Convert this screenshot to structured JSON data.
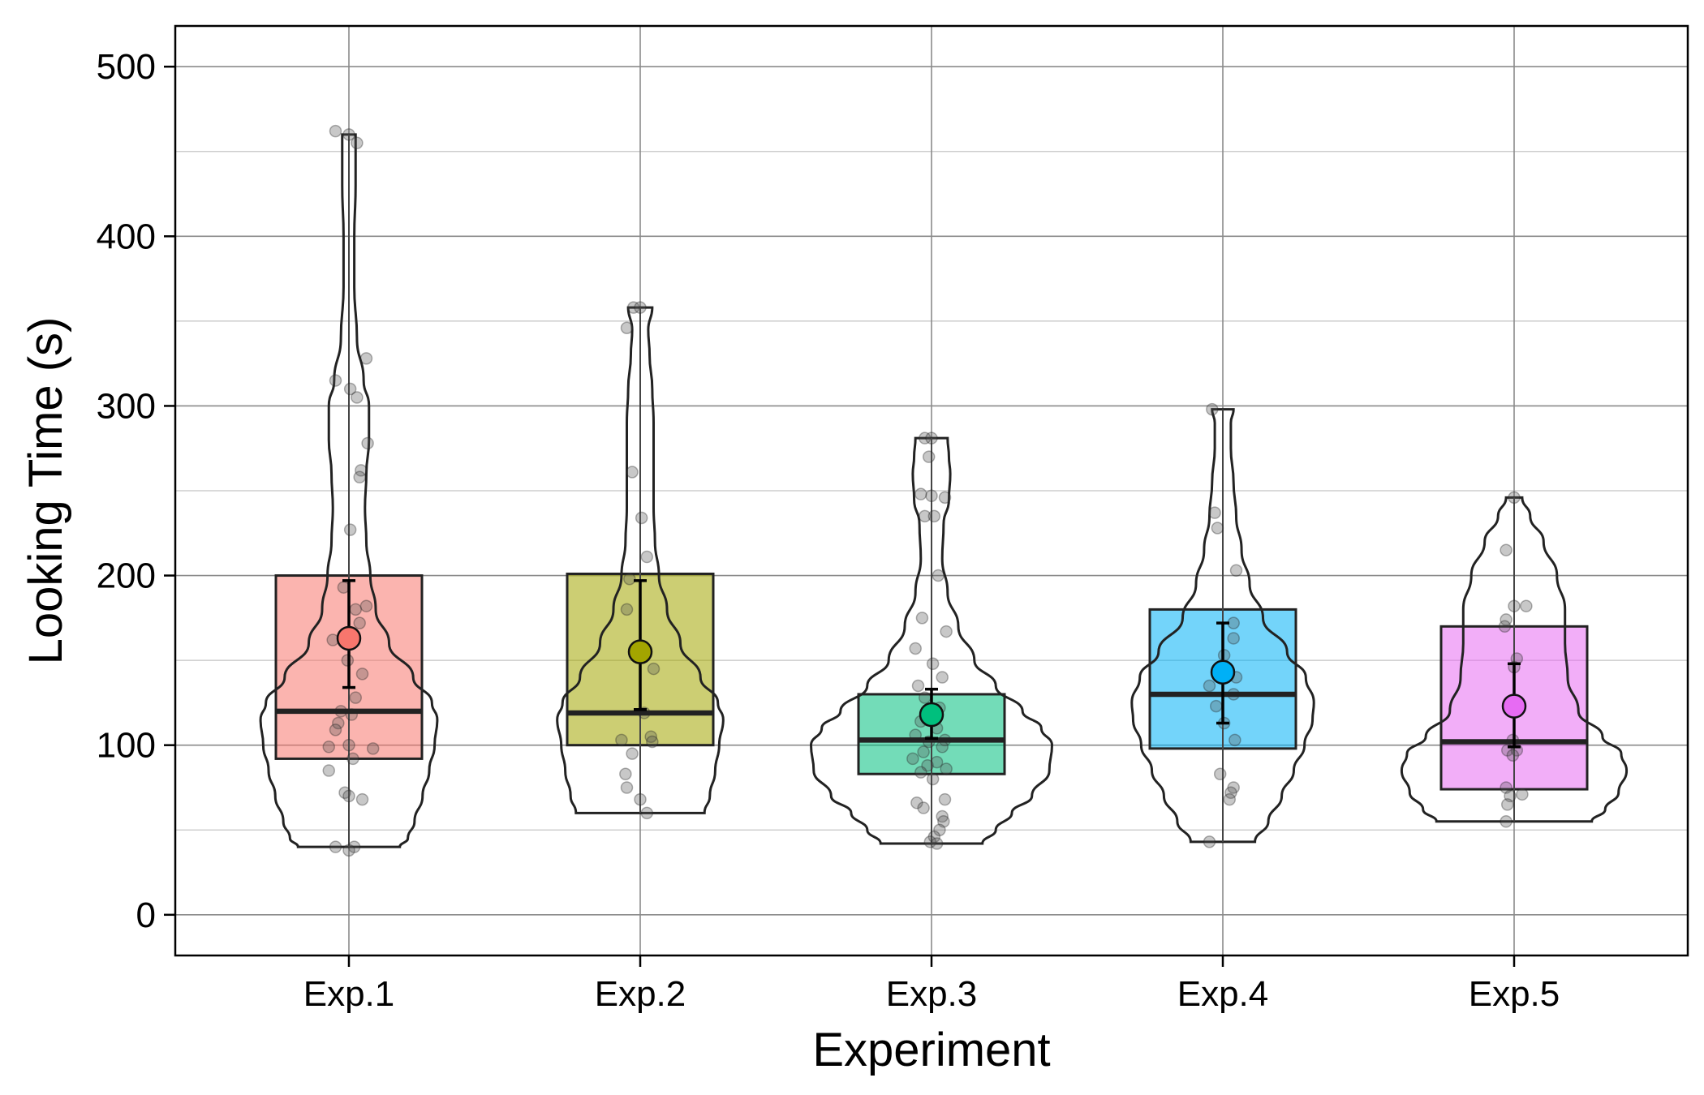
{
  "chart_data": {
    "type": "violin-box",
    "title": "",
    "xlabel": "Experiment",
    "ylabel": "Looking Time (s)",
    "ylim": [
      -24,
      524
    ],
    "yticks": [
      0,
      100,
      200,
      300,
      400,
      500
    ],
    "grid": true,
    "categories": [
      "Exp.1",
      "Exp.2",
      "Exp.3",
      "Exp.4",
      "Exp.5"
    ],
    "colors": [
      "#f8766d",
      "#a3a500",
      "#00bf7d",
      "#00b0f6",
      "#e76bf3"
    ],
    "series": [
      {
        "name": "Exp.1",
        "box": {
          "q1": 92,
          "median": 120,
          "q3": 200
        },
        "mean": 163,
        "ci": [
          134,
          197
        ],
        "violin": [
          [
            40,
            38
          ],
          [
            45,
            44
          ],
          [
            55,
            49
          ],
          [
            70,
            55
          ],
          [
            85,
            60
          ],
          [
            100,
            64
          ],
          [
            115,
            66
          ],
          [
            125,
            62
          ],
          [
            140,
            48
          ],
          [
            160,
            30
          ],
          [
            180,
            20
          ],
          [
            200,
            16
          ],
          [
            220,
            13
          ],
          [
            240,
            12
          ],
          [
            260,
            13
          ],
          [
            280,
            15
          ],
          [
            300,
            15
          ],
          [
            315,
            11
          ],
          [
            340,
            6
          ],
          [
            370,
            4
          ],
          [
            400,
            4
          ],
          [
            430,
            5
          ],
          [
            460,
            5
          ]
        ],
        "points": [
          [
            462,
            -10
          ],
          [
            460,
            0
          ],
          [
            455,
            6
          ],
          [
            328,
            13
          ],
          [
            315,
            -10
          ],
          [
            310,
            1
          ],
          [
            305,
            6
          ],
          [
            278,
            14
          ],
          [
            262,
            9
          ],
          [
            258,
            8
          ],
          [
            227,
            1
          ],
          [
            193,
            -4
          ],
          [
            182,
            13
          ],
          [
            180,
            5
          ],
          [
            172,
            8
          ],
          [
            162,
            -12
          ],
          [
            160,
            0
          ],
          [
            150,
            -1
          ],
          [
            142,
            10
          ],
          [
            128,
            5
          ],
          [
            120,
            -6
          ],
          [
            118,
            2
          ],
          [
            113,
            -8
          ],
          [
            109,
            -10
          ],
          [
            100,
            0
          ],
          [
            99,
            -15
          ],
          [
            98,
            18
          ],
          [
            92,
            3
          ],
          [
            85,
            -15
          ],
          [
            72,
            -3
          ],
          [
            70,
            0
          ],
          [
            68,
            10
          ],
          [
            40,
            -10
          ],
          [
            40,
            4
          ],
          [
            38,
            0
          ]
        ]
      },
      {
        "name": "Exp.2",
        "box": {
          "q1": 100,
          "median": 119,
          "q3": 201
        },
        "mean": 155,
        "ci": [
          121,
          197
        ],
        "violin": [
          [
            60,
            48
          ],
          [
            70,
            52
          ],
          [
            85,
            56
          ],
          [
            100,
            59
          ],
          [
            115,
            62
          ],
          [
            125,
            58
          ],
          [
            140,
            45
          ],
          [
            160,
            30
          ],
          [
            180,
            20
          ],
          [
            200,
            14
          ],
          [
            220,
            11
          ],
          [
            240,
            10
          ],
          [
            260,
            10
          ],
          [
            290,
            10
          ],
          [
            310,
            9
          ],
          [
            330,
            7
          ],
          [
            345,
            6
          ],
          [
            358,
            9
          ]
        ],
        "points": [
          [
            358,
            -5
          ],
          [
            358,
            0
          ],
          [
            346,
            -10
          ],
          [
            261,
            -6
          ],
          [
            234,
            1
          ],
          [
            211,
            5
          ],
          [
            198,
            -8
          ],
          [
            180,
            -10
          ],
          [
            145,
            10
          ],
          [
            119,
            3
          ],
          [
            105,
            8
          ],
          [
            103,
            -14
          ],
          [
            102,
            9
          ],
          [
            95,
            -6
          ],
          [
            83,
            -11
          ],
          [
            75,
            -10
          ],
          [
            68,
            0
          ],
          [
            60,
            5
          ]
        ]
      },
      {
        "name": "Exp.3",
        "box": {
          "q1": 83,
          "median": 103,
          "q3": 130
        },
        "mean": 118,
        "ci": [
          104,
          133
        ],
        "violin": [
          [
            42,
            38
          ],
          [
            50,
            48
          ],
          [
            60,
            60
          ],
          [
            70,
            75
          ],
          [
            85,
            88
          ],
          [
            100,
            90
          ],
          [
            110,
            82
          ],
          [
            120,
            68
          ],
          [
            135,
            48
          ],
          [
            150,
            32
          ],
          [
            170,
            20
          ],
          [
            190,
            12
          ],
          [
            210,
            8
          ],
          [
            230,
            9
          ],
          [
            245,
            13
          ],
          [
            260,
            14
          ],
          [
            270,
            13
          ],
          [
            281,
            12
          ]
        ],
        "points": [
          [
            281,
            -5
          ],
          [
            281,
            0
          ],
          [
            270,
            -2
          ],
          [
            248,
            -8
          ],
          [
            247,
            0
          ],
          [
            246,
            10
          ],
          [
            235,
            -5
          ],
          [
            235,
            2
          ],
          [
            200,
            5
          ],
          [
            175,
            -7
          ],
          [
            167,
            11
          ],
          [
            157,
            -12
          ],
          [
            148,
            1
          ],
          [
            140,
            8
          ],
          [
            135,
            -10
          ],
          [
            128,
            -5
          ],
          [
            122,
            6
          ],
          [
            114,
            -8
          ],
          [
            110,
            4
          ],
          [
            106,
            -12
          ],
          [
            103,
            10
          ],
          [
            102,
            -2
          ],
          [
            99,
            8
          ],
          [
            96,
            -6
          ],
          [
            92,
            -14
          ],
          [
            90,
            4
          ],
          [
            88,
            -3
          ],
          [
            86,
            11
          ],
          [
            84,
            -8
          ],
          [
            80,
            1
          ],
          [
            68,
            10
          ],
          [
            66,
            -11
          ],
          [
            63,
            -6
          ],
          [
            58,
            8
          ],
          [
            55,
            9
          ],
          [
            50,
            6
          ],
          [
            46,
            2
          ],
          [
            43,
            -1
          ],
          [
            42,
            4
          ]
        ]
      },
      {
        "name": "Exp.4",
        "box": {
          "q1": 98,
          "median": 130,
          "q3": 180
        },
        "mean": 143,
        "ci": [
          113,
          172
        ],
        "violin": [
          [
            43,
            24
          ],
          [
            55,
            34
          ],
          [
            70,
            44
          ],
          [
            85,
            53
          ],
          [
            100,
            61
          ],
          [
            115,
            67
          ],
          [
            125,
            68
          ],
          [
            140,
            62
          ],
          [
            155,
            48
          ],
          [
            175,
            30
          ],
          [
            195,
            20
          ],
          [
            215,
            14
          ],
          [
            235,
            10
          ],
          [
            255,
            8
          ],
          [
            275,
            6
          ],
          [
            290,
            6
          ],
          [
            298,
            8
          ]
        ],
        "points": [
          [
            298,
            -8
          ],
          [
            237,
            -6
          ],
          [
            228,
            -4
          ],
          [
            203,
            10
          ],
          [
            172,
            8
          ],
          [
            163,
            8
          ],
          [
            153,
            1
          ],
          [
            140,
            10
          ],
          [
            135,
            -10
          ],
          [
            130,
            8
          ],
          [
            123,
            -5
          ],
          [
            113,
            1
          ],
          [
            103,
            9
          ],
          [
            83,
            -2
          ],
          [
            75,
            8
          ],
          [
            72,
            6
          ],
          [
            68,
            5
          ],
          [
            43,
            -10
          ]
        ]
      },
      {
        "name": "Exp.5",
        "box": {
          "q1": 74,
          "median": 102,
          "q3": 170
        },
        "mean": 123,
        "ci": [
          99,
          148
        ],
        "violin": [
          [
            55,
            58
          ],
          [
            62,
            68
          ],
          [
            72,
            78
          ],
          [
            85,
            84
          ],
          [
            95,
            80
          ],
          [
            105,
            66
          ],
          [
            120,
            48
          ],
          [
            140,
            40
          ],
          [
            160,
            38
          ],
          [
            180,
            38
          ],
          [
            200,
            32
          ],
          [
            220,
            22
          ],
          [
            235,
            12
          ],
          [
            246,
            6
          ]
        ],
        "points": [
          [
            246,
            0
          ],
          [
            215,
            -6
          ],
          [
            182,
            0
          ],
          [
            182,
            9
          ],
          [
            174,
            -6
          ],
          [
            170,
            -7
          ],
          [
            151,
            2
          ],
          [
            146,
            0
          ],
          [
            123,
            0
          ],
          [
            103,
            -1
          ],
          [
            97,
            -5
          ],
          [
            97,
            2
          ],
          [
            94,
            -1
          ],
          [
            75,
            -6
          ],
          [
            71,
            6
          ],
          [
            70,
            -3
          ],
          [
            65,
            -5
          ],
          [
            55,
            -6
          ]
        ]
      }
    ]
  }
}
